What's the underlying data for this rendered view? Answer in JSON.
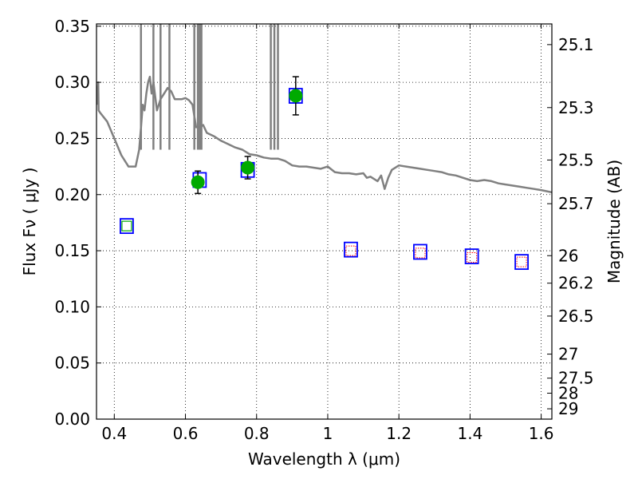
{
  "chart_data": {
    "type": "scatter",
    "xlabel": "Wavelength  λ (μm)",
    "ylabel": "Flux  Fν  ( μJy )",
    "ylabel_right": "Magnitude (AB)",
    "xlim": [
      0.35,
      1.63
    ],
    "ylim": [
      0.0,
      0.352
    ],
    "grid": true,
    "x_ticks": [
      0.4,
      0.6,
      0.8,
      1.0,
      1.2,
      1.4,
      1.6
    ],
    "x_tick_labels": [
      "0.4",
      "0.6",
      "0.8",
      "1",
      "1.2",
      "1.4",
      "1.6"
    ],
    "y_ticks": [
      0.0,
      0.05,
      0.1,
      0.15,
      0.2,
      0.25,
      0.3,
      0.35
    ],
    "y_tick_labels": [
      "0.00",
      "0.05",
      "0.10",
      "0.15",
      "0.20",
      "0.25",
      "0.30",
      "0.35"
    ],
    "right_ticks": [
      {
        "label": "25.1",
        "flux": 0.3336
      },
      {
        "label": "25.3",
        "flux": 0.2775
      },
      {
        "label": "25.5",
        "flux": 0.2308
      },
      {
        "label": "25.7",
        "flux": 0.1919
      },
      {
        "label": "26",
        "flux": 0.1456
      },
      {
        "label": "26.2",
        "flux": 0.1211
      },
      {
        "label": "26.5",
        "flux": 0.0918
      },
      {
        "label": "27",
        "flux": 0.0579
      },
      {
        "label": "27.5",
        "flux": 0.0365
      },
      {
        "label": "28",
        "flux": 0.0231
      },
      {
        "label": "29",
        "flux": 0.0092
      }
    ],
    "series": [
      {
        "marker": "template-spectrum",
        "color": "#808080",
        "x": [
          0.35,
          0.355,
          0.356,
          0.36,
          0.38,
          0.4,
          0.42,
          0.44,
          0.46,
          0.47,
          0.475,
          0.48,
          0.485,
          0.49,
          0.495,
          0.5,
          0.505,
          0.51,
          0.52,
          0.525,
          0.53,
          0.54,
          0.55,
          0.56,
          0.57,
          0.58,
          0.59,
          0.6,
          0.61,
          0.62,
          0.63,
          0.64,
          0.65,
          0.66,
          0.68,
          0.7,
          0.72,
          0.74,
          0.76,
          0.78,
          0.8,
          0.82,
          0.84,
          0.86,
          0.88,
          0.9,
          0.92,
          0.94,
          0.96,
          0.98,
          1.0,
          1.02,
          1.04,
          1.06,
          1.08,
          1.1,
          1.11,
          1.12,
          1.14,
          1.15,
          1.16,
          1.17,
          1.18,
          1.2,
          1.22,
          1.24,
          1.26,
          1.28,
          1.3,
          1.32,
          1.34,
          1.36,
          1.38,
          1.4,
          1.42,
          1.44,
          1.46,
          1.48,
          1.5,
          1.52,
          1.54,
          1.56,
          1.58,
          1.6,
          1.63
        ],
        "y": [
          0.28,
          0.3,
          0.275,
          0.273,
          0.265,
          0.25,
          0.235,
          0.225,
          0.225,
          0.24,
          0.26,
          0.28,
          0.275,
          0.29,
          0.3,
          0.305,
          0.29,
          0.3,
          0.275,
          0.28,
          0.285,
          0.29,
          0.295,
          0.292,
          0.285,
          0.285,
          0.285,
          0.286,
          0.284,
          0.28,
          0.26,
          0.26,
          0.262,
          0.255,
          0.252,
          0.248,
          0.245,
          0.242,
          0.24,
          0.236,
          0.235,
          0.233,
          0.232,
          0.232,
          0.23,
          0.226,
          0.225,
          0.225,
          0.224,
          0.223,
          0.225,
          0.22,
          0.219,
          0.219,
          0.218,
          0.219,
          0.215,
          0.216,
          0.212,
          0.217,
          0.205,
          0.215,
          0.222,
          0.226,
          0.225,
          0.224,
          0.223,
          0.222,
          0.221,
          0.22,
          0.218,
          0.217,
          0.215,
          0.213,
          0.212,
          0.213,
          0.212,
          0.21,
          0.209,
          0.208,
          0.207,
          0.206,
          0.205,
          0.204,
          0.202
        ]
      },
      {
        "marker": "blue-square",
        "color": "#0000ff",
        "x": [
          0.435,
          0.64,
          0.775,
          0.91,
          1.065,
          1.26,
          1.405,
          1.545
        ],
        "y": [
          0.172,
          0.213,
          0.222,
          0.288,
          0.151,
          0.149,
          0.145,
          0.14
        ]
      },
      {
        "marker": "green-circle",
        "color": "#00aa00",
        "x": [
          0.635,
          0.775,
          0.91
        ],
        "y": [
          0.211,
          0.224,
          0.288
        ],
        "err": [
          0.01,
          0.01,
          0.017
        ]
      },
      {
        "marker": "green-small-square",
        "color": "#00aa00",
        "x": [
          0.435
        ],
        "y": [
          0.172
        ]
      },
      {
        "marker": "red-small-square",
        "color": "#ff0000",
        "x": [
          1.065,
          1.26,
          1.405,
          1.545
        ],
        "y": [
          0.15,
          0.148,
          0.144,
          0.14
        ]
      }
    ]
  }
}
